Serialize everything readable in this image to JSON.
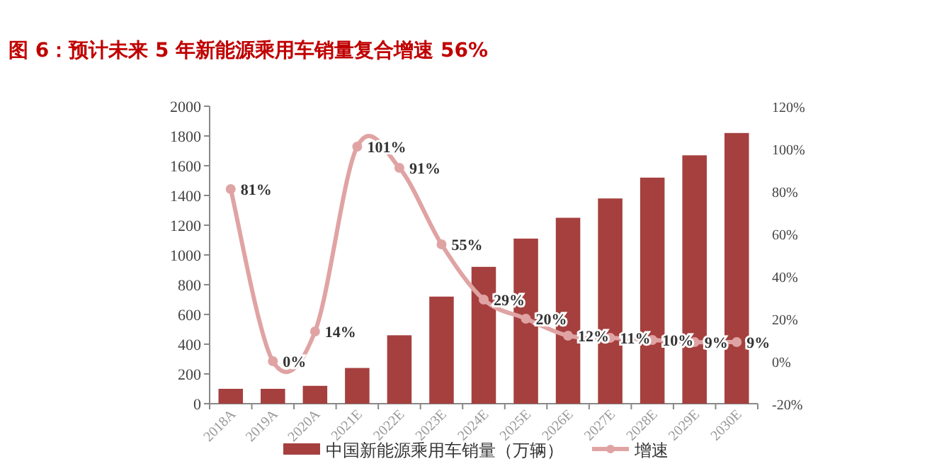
{
  "chart_data": {
    "type": "bar",
    "title": "图 6：预计未来 5 年新能源乘用车销量复合增速 56%",
    "categories": [
      "2018A",
      "2019A",
      "2020A",
      "2021E",
      "2022E",
      "2023E",
      "2024E",
      "2025E",
      "2026E",
      "2027E",
      "2028E",
      "2029E",
      "2030E"
    ],
    "series": [
      {
        "name": "中国新能源乘用车销量（万辆）",
        "color": "#a5403f",
        "values": [
          100,
          100,
          120,
          240,
          460,
          720,
          920,
          1110,
          1250,
          1380,
          1520,
          1670,
          1820
        ]
      },
      {
        "name": "增速",
        "type": "line",
        "axis": "y2",
        "color": "#e0a3a3",
        "marker": "circle",
        "values": [
          81,
          0,
          14,
          101,
          91,
          55,
          29,
          20,
          12,
          11,
          10,
          9,
          9
        ],
        "value_labels": [
          "81%",
          "0%",
          "14%",
          "101%",
          "91%",
          "55%",
          "29%",
          "20%",
          "12%",
          "11%",
          "10%",
          "9%",
          "9%"
        ]
      }
    ],
    "ylim": [
      0,
      2000
    ],
    "yticks": [
      0,
      200,
      400,
      600,
      800,
      1000,
      1200,
      1400,
      1600,
      1800,
      2000
    ],
    "y2lim": [
      -20,
      120
    ],
    "y2ticks": [
      {
        "value": -20,
        "label": "-20%"
      },
      {
        "value": 0,
        "label": "0%"
      },
      {
        "value": 20,
        "label": "20%"
      },
      {
        "value": 40,
        "label": "40%"
      },
      {
        "value": 60,
        "label": "60%"
      },
      {
        "value": 80,
        "label": "80%"
      },
      {
        "value": 100,
        "label": "100%"
      },
      {
        "value": 120,
        "label": "120%"
      }
    ],
    "legend": "bottom",
    "grid": false
  }
}
